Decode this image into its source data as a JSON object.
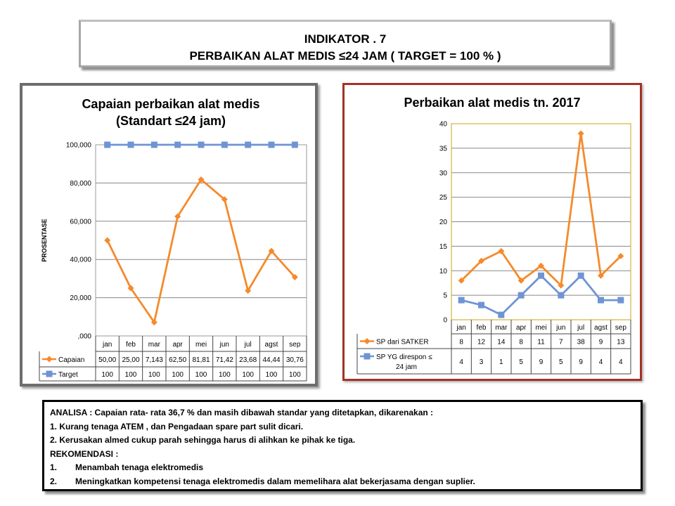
{
  "header": {
    "line1": "INDIKATOR . 7",
    "line2": "PERBAIKAN ALAT MEDIS  ≤24 JAM ( TARGET = 100 % )"
  },
  "colors": {
    "orange": "#f58a2a",
    "blue": "#6f94d4",
    "left_border": "#6d6d6d",
    "right_border": "#a33227",
    "plot_border_right": "#d4b23c"
  },
  "chart_data": [
    {
      "type": "line",
      "title": "Capaian perbaikan alat medis (Standart ≤24 jam)",
      "title_lines": [
        "Capaian perbaikan alat medis",
        "(Standart ≤24 jam)"
      ],
      "ylabel": "PROSENTASE",
      "xlabel": "",
      "ylim": [
        0,
        100
      ],
      "yticks": [
        0,
        20,
        40,
        60,
        80,
        100
      ],
      "ytick_labels": [
        ",000",
        "20,000",
        "40,000",
        "60,000",
        "80,000",
        "100,000"
      ],
      "categories": [
        "jan",
        "feb",
        "mar",
        "apr",
        "mei",
        "jun",
        "jul",
        "agst",
        "sep"
      ],
      "grid": true,
      "legend": "data-table",
      "series": [
        {
          "name": "Capaian",
          "marker": "diamond",
          "color": "#f58a2a",
          "values": [
            50.0,
            25.0,
            7.143,
            62.5,
            81.81,
            71.42,
            23.68,
            44.44,
            30.76
          ],
          "labels": [
            "50,00",
            "25,00",
            "7,143",
            "62,50",
            "81,81",
            "71,42",
            "23,68",
            "44,44",
            "30,76"
          ]
        },
        {
          "name": "Target",
          "marker": "square",
          "color": "#6f94d4",
          "values": [
            100,
            100,
            100,
            100,
            100,
            100,
            100,
            100,
            100
          ],
          "labels": [
            "100",
            "100",
            "100",
            "100",
            "100",
            "100",
            "100",
            "100",
            "100"
          ]
        }
      ]
    },
    {
      "type": "line",
      "title": "Perbaikan alat medis tn. 2017",
      "title_lines": [
        "Perbaikan alat medis tn. 2017"
      ],
      "xlabel": "",
      "ylabel": "",
      "ylim": [
        0,
        40
      ],
      "yticks": [
        0,
        5,
        10,
        15,
        20,
        25,
        30,
        35,
        40
      ],
      "ytick_labels": [
        "0",
        "5",
        "10",
        "15",
        "20",
        "25",
        "30",
        "35",
        "40"
      ],
      "categories": [
        "jan",
        "feb",
        "mar",
        "apr",
        "mei",
        "jun",
        "jul",
        "agst",
        "sep"
      ],
      "grid": true,
      "legend": "data-table",
      "series": [
        {
          "name": "SP dari SATKER",
          "name_lines": [
            "SP dari SATKER"
          ],
          "marker": "diamond",
          "color": "#f58a2a",
          "values": [
            8,
            12,
            14,
            8,
            11,
            7,
            38,
            9,
            13
          ],
          "labels": [
            "8",
            "12",
            "14",
            "8",
            "11",
            "7",
            "38",
            "9",
            "13"
          ]
        },
        {
          "name": "SP YG direspon ≤ 24 jam",
          "name_lines": [
            "SP YG direspon ≤",
            "24 jam"
          ],
          "marker": "square",
          "color": "#6f94d4",
          "values": [
            4,
            3,
            1,
            5,
            9,
            5,
            9,
            4,
            4
          ],
          "labels": [
            "4",
            "3",
            "1",
            "5",
            "9",
            "5",
            "9",
            "4",
            "4"
          ]
        }
      ]
    }
  ],
  "analysis": {
    "lines": [
      "ANALISA :  Capaian rata- rata  36,7 %  dan masih dibawah standar yang ditetapkan, dikarenakan :",
      "1. Kurang tenaga ATEM , dan Pengadaan spare part  sulit dicari.",
      "2. Kerusakan almed cukup parah sehingga harus di alihkan ke pihak ke tiga.",
      "REKOMENDASI  :"
    ],
    "recommendations": [
      {
        "num": "1.",
        "text": "Menambah tenaga elektromedis"
      },
      {
        "num": "2.",
        "text": "Meningkatkan kompetensi tenaga elektromedis dalam memelihara  alat bekerjasama dengan suplier."
      }
    ]
  }
}
